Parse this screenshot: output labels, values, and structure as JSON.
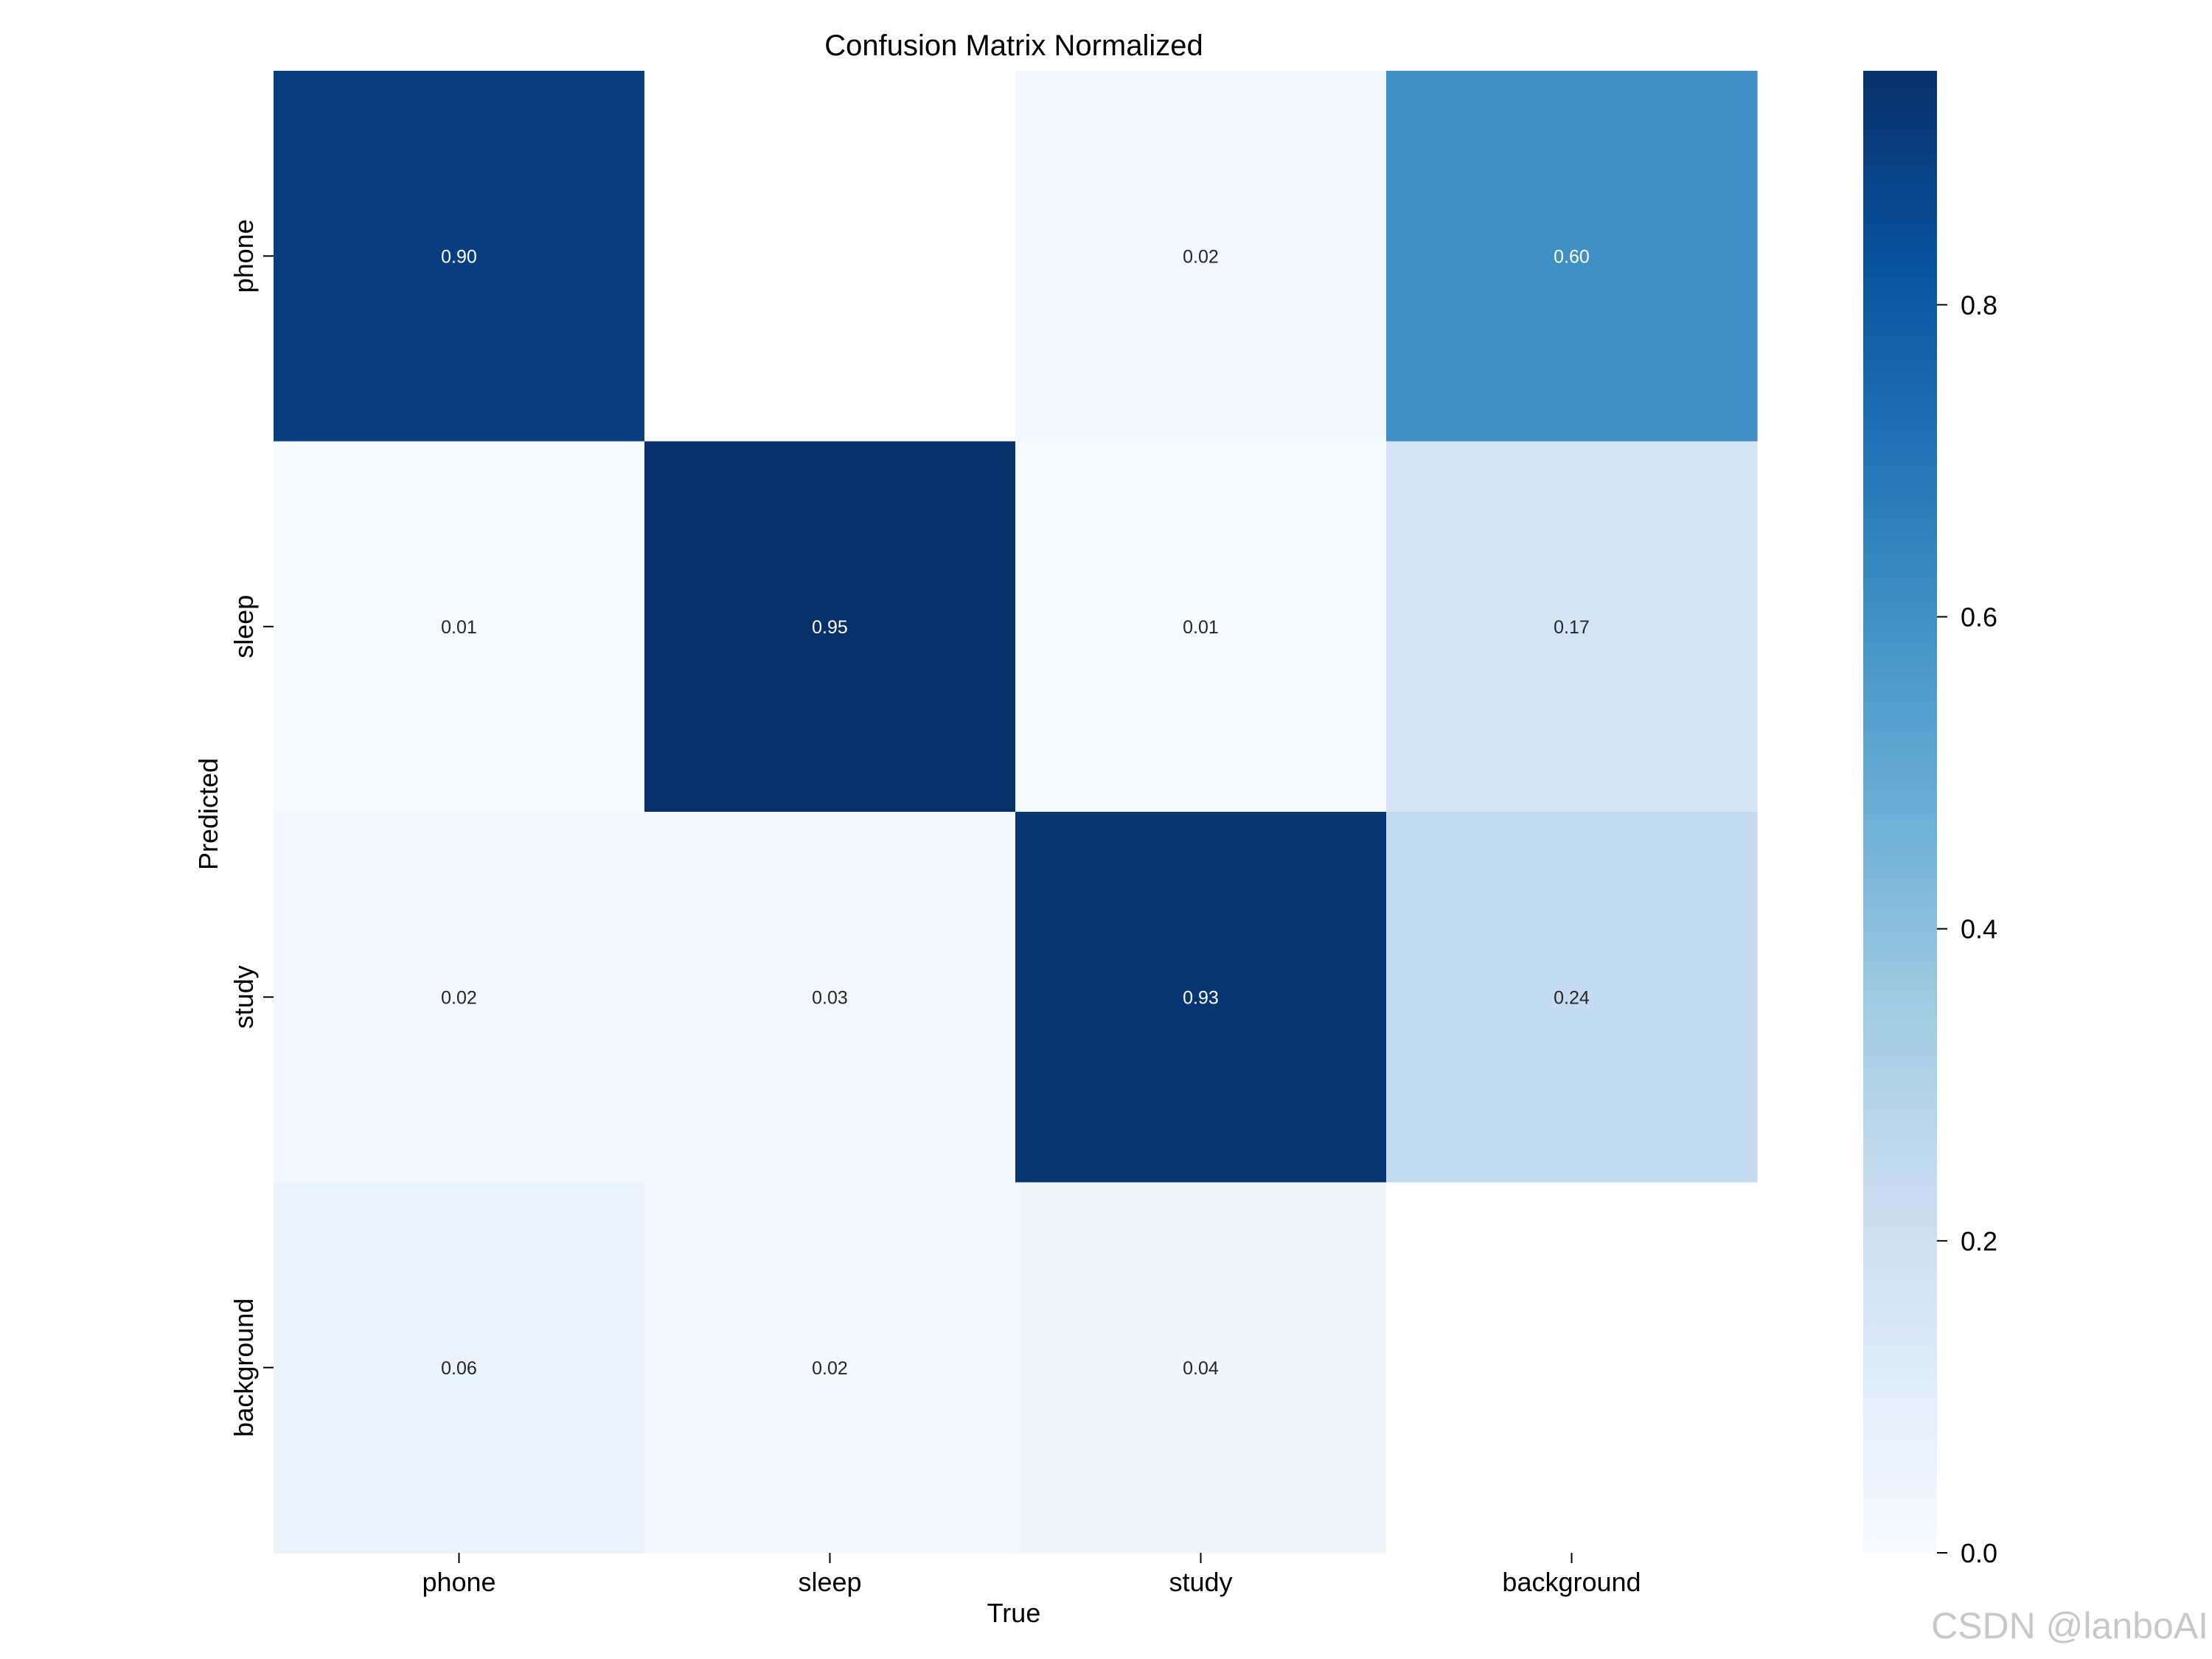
{
  "chart_data": {
    "type": "heatmap",
    "title": "Confusion Matrix Normalized",
    "xlabel": "True",
    "ylabel": "Predicted",
    "x_categories": [
      "phone",
      "sleep",
      "study",
      "background"
    ],
    "y_categories": [
      "phone",
      "sleep",
      "study",
      "background"
    ],
    "values": [
      [
        0.9,
        null,
        0.02,
        0.6
      ],
      [
        0.01,
        0.95,
        0.01,
        0.17
      ],
      [
        0.02,
        0.03,
        0.93,
        0.24
      ],
      [
        0.06,
        0.02,
        0.04,
        null
      ]
    ],
    "cell_labels": [
      [
        "0.90",
        "",
        "0.02",
        "0.60"
      ],
      [
        "0.01",
        "0.95",
        "0.01",
        "0.17"
      ],
      [
        "0.02",
        "0.03",
        "0.93",
        "0.24"
      ],
      [
        "0.06",
        "0.02",
        "0.04",
        ""
      ]
    ],
    "colormap": "Blues",
    "colorbar": {
      "range": [
        0,
        0.95
      ],
      "ticks": [
        0.0,
        0.2,
        0.4,
        0.6,
        0.8
      ],
      "tick_labels": [
        "0.0",
        "0.2",
        "0.4",
        "0.6",
        "0.8"
      ]
    }
  },
  "watermark": "CSDN @lanboAI"
}
